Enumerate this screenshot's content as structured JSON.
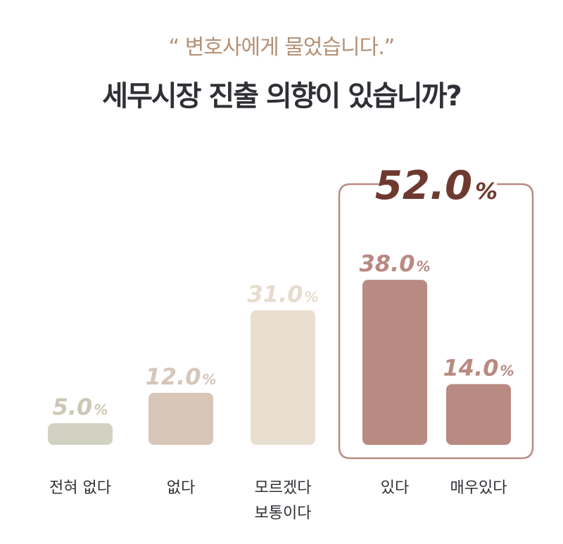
{
  "header": {
    "subtitle": "“ 변호사에게 물었습니다.”",
    "title": "세무시장 진출 의향이 있습니까?"
  },
  "chart_data": {
    "type": "bar",
    "categories": [
      "전혀 없다",
      "없다",
      "모르겠다\n보통이다",
      "있다",
      "매우있다"
    ],
    "values": [
      5.0,
      12.0,
      31.0,
      38.0,
      14.0
    ],
    "value_labels": [
      "5.0",
      "12.0",
      "31.0",
      "38.0",
      "14.0"
    ],
    "unit": "%",
    "colors": [
      "#d2d2c2",
      "#d8c6b9",
      "#e9dfd0",
      "#b98a82",
      "#b98a82"
    ],
    "label_colors": [
      "#cbc9b5",
      "#d6c6b9",
      "#e6dccd",
      "#b98a82",
      "#b98a82"
    ],
    "group": {
      "members": [
        "있다",
        "매우있다"
      ],
      "total_label": "52.0",
      "color": "#6e3a2f",
      "border_color": "#b98a82"
    }
  }
}
